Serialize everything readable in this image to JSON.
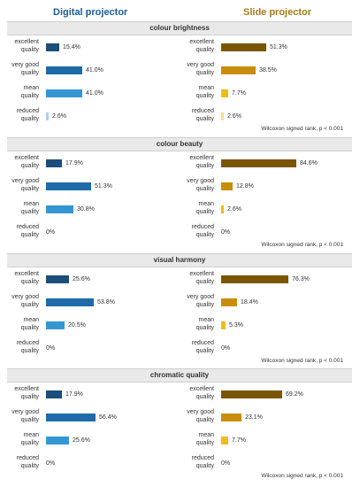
{
  "headers": {
    "digital": "Digital projector",
    "slide": "Slide projector"
  },
  "categories": [
    "excellent quality",
    "very good quality",
    "mean quality",
    "reduced quality"
  ],
  "colors": {
    "digital": [
      "#1b4e7a",
      "#1f6aa8",
      "#3497d4",
      "#a9d2ef"
    ],
    "slide": [
      "#7a5603",
      "#c98d0c",
      "#f0bb1d",
      "#f7dd8e"
    ]
  },
  "chart_data": [
    {
      "type": "bar",
      "title": "colour brightness",
      "categories": [
        "excellent quality",
        "very good quality",
        "mean quality",
        "reduced quality"
      ],
      "series": [
        {
          "name": "Digital projector",
          "values": [
            15.4,
            41.0,
            41.0,
            2.6
          ],
          "labels": [
            "15.4%",
            "41.0%",
            "41.0%",
            "2.6%"
          ]
        },
        {
          "name": "Slide projector",
          "values": [
            51.3,
            38.5,
            7.7,
            2.6
          ],
          "labels": [
            "51.3%",
            "38.5%",
            "7.7%",
            "2.6%"
          ]
        }
      ],
      "annotation": "Wilcoxon signed rank, p < 0.001"
    },
    {
      "type": "bar",
      "title": "colour beauty",
      "categories": [
        "excellent quality",
        "very good quality",
        "mean quality",
        "reduced quality"
      ],
      "series": [
        {
          "name": "Digital projector",
          "values": [
            17.9,
            51.3,
            30.8,
            0
          ],
          "labels": [
            "17.9%",
            "51.3%",
            "30.8%",
            "0%"
          ]
        },
        {
          "name": "Slide projector",
          "values": [
            84.6,
            12.8,
            2.6,
            0
          ],
          "labels": [
            "84.6%",
            "12.8%",
            "2.6%",
            "0%"
          ]
        }
      ],
      "annotation": "Wilcoxon signed rank, p < 0.001"
    },
    {
      "type": "bar",
      "title": "visual harmony",
      "categories": [
        "excellent quality",
        "very good quality",
        "mean quality",
        "reduced quality"
      ],
      "series": [
        {
          "name": "Digital projector",
          "values": [
            25.6,
            53.8,
            20.5,
            0
          ],
          "labels": [
            "25.6%",
            "53.8%",
            "20.5%",
            "0%"
          ]
        },
        {
          "name": "Slide projector",
          "values": [
            76.3,
            18.4,
            5.3,
            0
          ],
          "labels": [
            "76.3%",
            "18.4%",
            "5.3%",
            "0%"
          ]
        }
      ],
      "annotation": "Wilcoxon signed rank, p < 0.001"
    },
    {
      "type": "bar",
      "title": "chromatic quality",
      "categories": [
        "excellent quality",
        "very good quality",
        "mean quality",
        "reduced quality"
      ],
      "series": [
        {
          "name": "Digital projector",
          "values": [
            17.9,
            56.4,
            25.6,
            0
          ],
          "labels": [
            "17.9%",
            "56.4%",
            "25.6%",
            "0%"
          ]
        },
        {
          "name": "Slide projector",
          "values": [
            69.2,
            23.1,
            7.7,
            0
          ],
          "labels": [
            "69.2%",
            "23.1%",
            "7.7%",
            "0%"
          ]
        }
      ],
      "annotation": "Wilcoxon signed rank, p < 0.001"
    }
  ]
}
